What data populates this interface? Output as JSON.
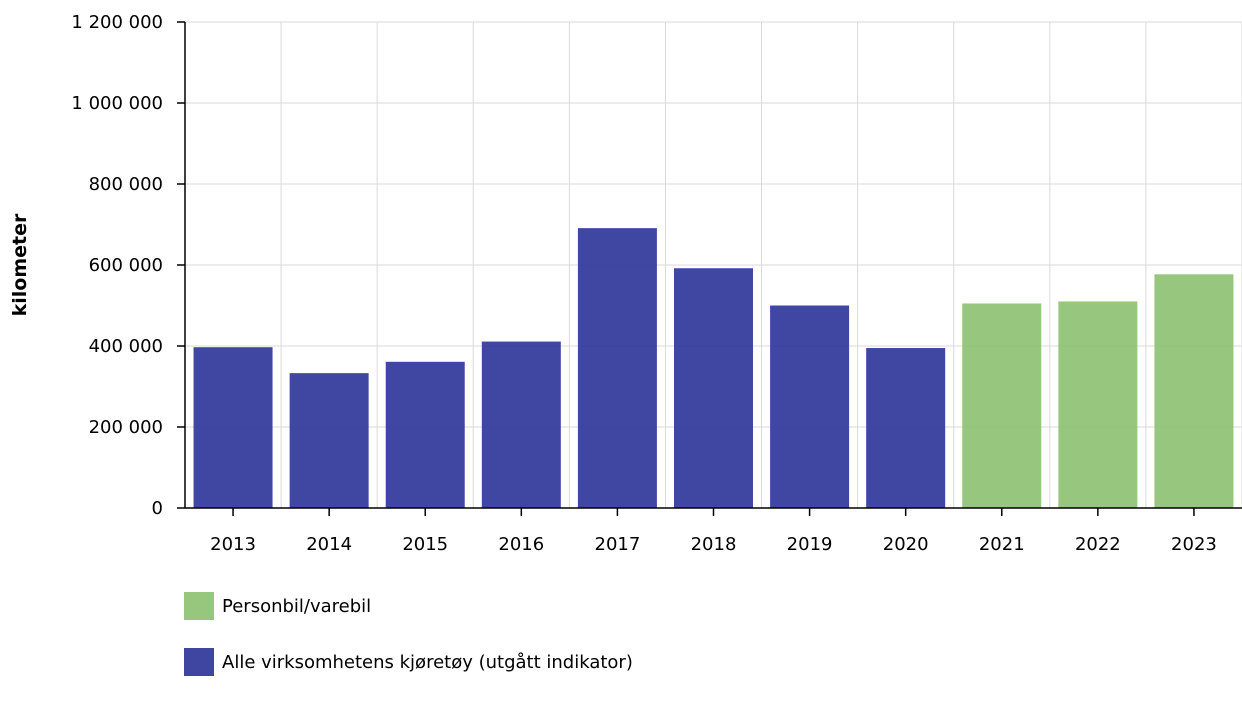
{
  "chart_data": {
    "type": "bar",
    "ylabel": "kilometer",
    "xlabel": "",
    "ylim": [
      0,
      1200000
    ],
    "yticks": [
      "0",
      "200 000",
      "400 000",
      "600 000",
      "800 000",
      "1 000 000",
      "1 200 000"
    ],
    "ytick_values": [
      0,
      200000,
      400000,
      600000,
      800000,
      1000000,
      1200000
    ],
    "categories": [
      "2013",
      "2014",
      "2015",
      "2016",
      "2017",
      "2018",
      "2019",
      "2020",
      "2021",
      "2022",
      "2023"
    ],
    "series": [
      {
        "name": "Personbil/varebil",
        "color": "#8cc070",
        "values": [
          null,
          null,
          null,
          null,
          null,
          null,
          null,
          null,
          505000,
          510000,
          577000
        ]
      },
      {
        "name": "Alle virksomhetens kjøretøy (utgått indikator)",
        "color": "#2b3399",
        "values": [
          397000,
          333000,
          361000,
          411000,
          691000,
          592000,
          500000,
          395000,
          null,
          null,
          null
        ]
      }
    ],
    "grid": true,
    "legend_position": "bottom"
  }
}
